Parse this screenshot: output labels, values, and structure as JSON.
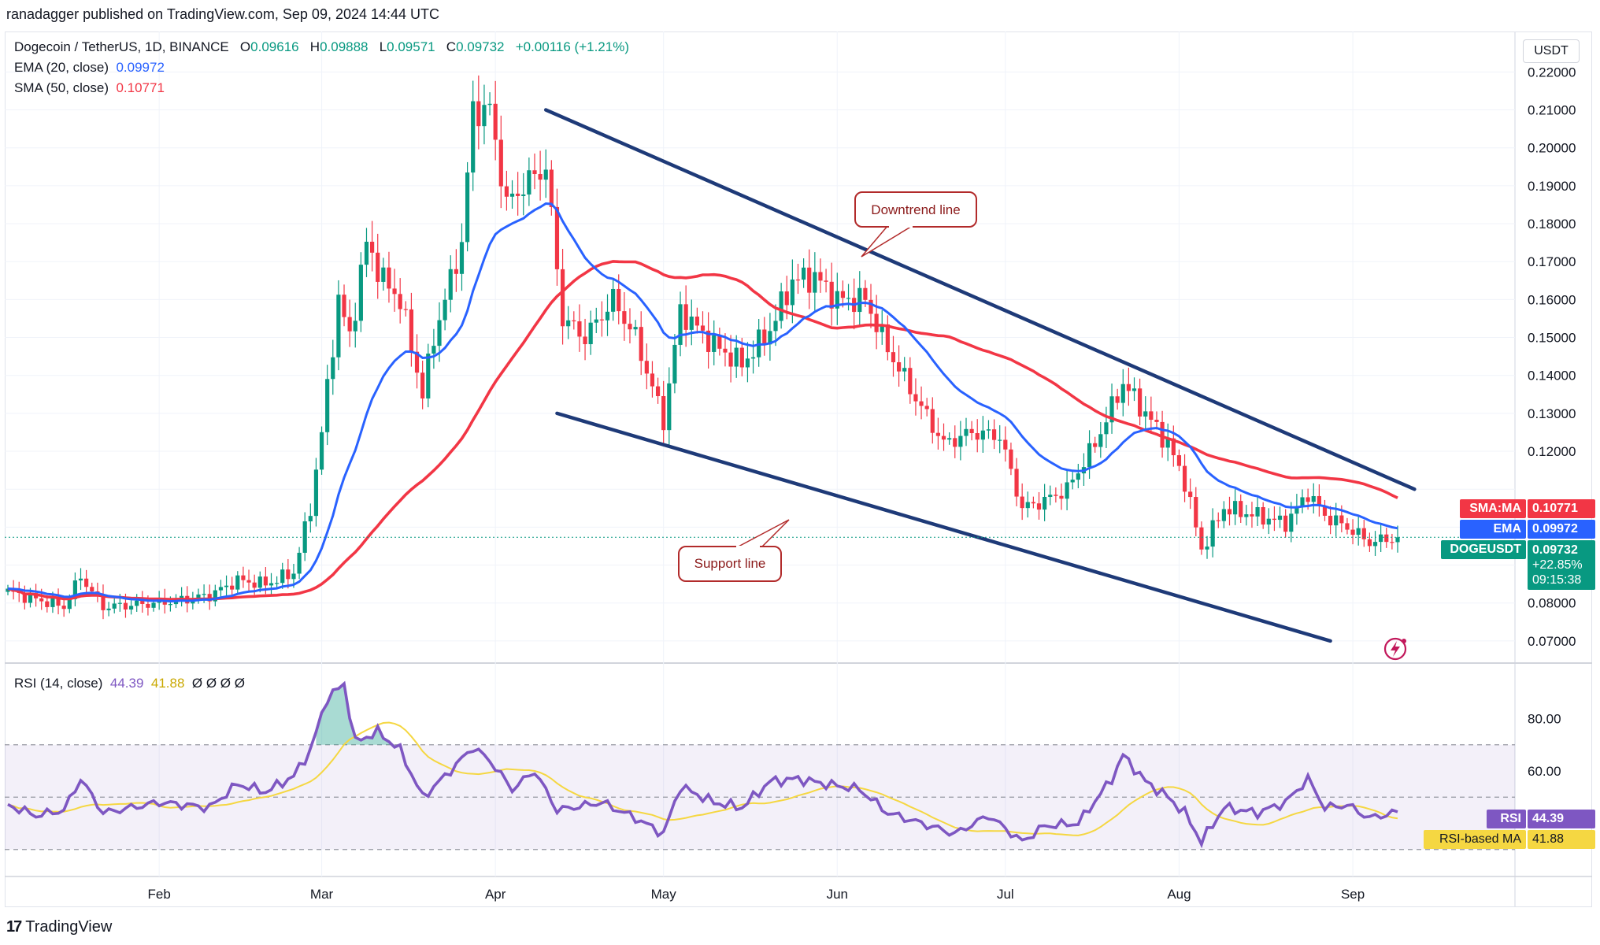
{
  "header": {
    "title": "ranadagger published on TradingView.com, Sep 09, 2024 14:44 UTC"
  },
  "legend": {
    "symbol": "Dogecoin / TetherUS, 1D, BINANCE",
    "o_label": "O",
    "o_value": "0.09616",
    "h_label": "H",
    "h_value": "0.09888",
    "l_label": "L",
    "l_value": "0.09571",
    "c_label": "C",
    "c_value": "0.09732",
    "change": "+0.00116 (+1.21%)",
    "ema_label": "EMA (20, close)",
    "ema_value": "0.09972",
    "sma_label": "SMA (50, close)",
    "sma_value": "0.10771",
    "rsi_label": "RSI (14, close)",
    "rsi_value": "44.39",
    "rsi_ma_value": "41.88",
    "rsi_extra": "Ø Ø Ø Ø"
  },
  "currency_button": "USDT",
  "tags": {
    "sma_name": "SMA:MA",
    "sma_value": "0.10771",
    "ema_name": "EMA",
    "ema_value": "0.09972",
    "sym_name": "DOGEUSDT",
    "price": "0.09732",
    "pct": "+22.85%",
    "countdown": "09:15:38",
    "rsi_name": "RSI",
    "rsi_value": "44.39",
    "rsima_name": "RSI-based MA",
    "rsima_value": "41.88"
  },
  "annotations": {
    "downtrend": "Downtrend line",
    "support": "Support line"
  },
  "footer": {
    "brand": "TradingView"
  },
  "colors": {
    "up": "#089981",
    "down": "#f23645",
    "ema": "#2962ff",
    "sma": "#f23645",
    "trendline": "#1e3a78",
    "rsi": "#7e57c2",
    "rsi_ma": "#f5d742",
    "price_tag": "#089981"
  },
  "chart_data": [
    {
      "type": "candlestick",
      "title": "Dogecoin / TetherUS, 1D, BINANCE",
      "y_tick_labels": [
        "0.22000",
        "0.21000",
        "0.20000",
        "0.19000",
        "0.18000",
        "0.17000",
        "0.16000",
        "0.15000",
        "0.14000",
        "0.13000",
        "0.12000",
        "0.08000",
        "0.07000"
      ],
      "x_tick_labels": [
        "Feb",
        "Mar",
        "Apr",
        "May",
        "Jun",
        "Jul",
        "Aug",
        "Sep"
      ],
      "ylim": [
        0.065,
        0.229
      ],
      "x_start": "2024-01-05",
      "close_anchors": [
        [
          "2024-01-05",
          0.083
        ],
        [
          "2024-01-10",
          0.081
        ],
        [
          "2024-01-15",
          0.079
        ],
        [
          "2024-01-18",
          0.087
        ],
        [
          "2024-01-22",
          0.079
        ],
        [
          "2024-02-01",
          0.08
        ],
        [
          "2024-02-10",
          0.082
        ],
        [
          "2024-02-15",
          0.086
        ],
        [
          "2024-02-20",
          0.085
        ],
        [
          "2024-02-25",
          0.088
        ],
        [
          "2024-02-28",
          0.105
        ],
        [
          "2024-03-01",
          0.125
        ],
        [
          "2024-03-04",
          0.16
        ],
        [
          "2024-03-06",
          0.15
        ],
        [
          "2024-03-09",
          0.175
        ],
        [
          "2024-03-12",
          0.165
        ],
        [
          "2024-03-15",
          0.16
        ],
        [
          "2024-03-19",
          0.135
        ],
        [
          "2024-03-21",
          0.15
        ],
        [
          "2024-03-26",
          0.175
        ],
        [
          "2024-03-28",
          0.21
        ],
        [
          "2024-03-31",
          0.21
        ],
        [
          "2024-04-03",
          0.185
        ],
        [
          "2024-04-06",
          0.19
        ],
        [
          "2024-04-10",
          0.195
        ],
        [
          "2024-04-13",
          0.155
        ],
        [
          "2024-04-17",
          0.15
        ],
        [
          "2024-04-22",
          0.16
        ],
        [
          "2024-04-26",
          0.15
        ],
        [
          "2024-05-01",
          0.128
        ],
        [
          "2024-05-04",
          0.157
        ],
        [
          "2024-05-10",
          0.148
        ],
        [
          "2024-05-15",
          0.143
        ],
        [
          "2024-05-20",
          0.152
        ],
        [
          "2024-05-24",
          0.165
        ],
        [
          "2024-05-28",
          0.166
        ],
        [
          "2024-06-01",
          0.16
        ],
        [
          "2024-06-06",
          0.16
        ],
        [
          "2024-06-10",
          0.147
        ],
        [
          "2024-06-15",
          0.134
        ],
        [
          "2024-06-20",
          0.122
        ],
        [
          "2024-06-25",
          0.125
        ],
        [
          "2024-06-30",
          0.124
        ],
        [
          "2024-07-04",
          0.105
        ],
        [
          "2024-07-08",
          0.107
        ],
        [
          "2024-07-12",
          0.11
        ],
        [
          "2024-07-17",
          0.122
        ],
        [
          "2024-07-22",
          0.138
        ],
        [
          "2024-07-26",
          0.13
        ],
        [
          "2024-07-30",
          0.122
        ],
        [
          "2024-08-02",
          0.112
        ],
        [
          "2024-08-05",
          0.094
        ],
        [
          "2024-08-09",
          0.105
        ],
        [
          "2024-08-15",
          0.103
        ],
        [
          "2024-08-20",
          0.101
        ],
        [
          "2024-08-24",
          0.109
        ],
        [
          "2024-08-27",
          0.103
        ],
        [
          "2024-08-31",
          0.1
        ],
        [
          "2024-09-04",
          0.096
        ],
        [
          "2024-09-09",
          0.09732
        ]
      ],
      "series": [
        {
          "name": "EMA (20, close)",
          "last": 0.09972
        },
        {
          "name": "SMA (50, close)",
          "last": 0.10771
        }
      ],
      "trendlines": [
        {
          "label": "Downtrend line",
          "from": [
            "2024-04-10",
            0.21
          ],
          "to": [
            "2024-09-12",
            0.11
          ]
        },
        {
          "label": "Support line",
          "from": [
            "2024-04-12",
            0.13
          ],
          "to": [
            "2024-08-28",
            0.07
          ]
        }
      ],
      "last_price": 0.09732
    },
    {
      "type": "line",
      "title": "RSI (14, close)",
      "y_tick_labels": [
        "80.00",
        "60.00"
      ],
      "ylim": [
        20,
        100
      ],
      "bands": [
        30,
        50,
        70
      ],
      "x_start": "2024-01-05",
      "rsi_anchors": [
        [
          "2024-01-05",
          47
        ],
        [
          "2024-01-10",
          43
        ],
        [
          "2024-01-15",
          45
        ],
        [
          "2024-01-18",
          57
        ],
        [
          "2024-01-22",
          44
        ],
        [
          "2024-02-01",
          48
        ],
        [
          "2024-02-10",
          46
        ],
        [
          "2024-02-15",
          55
        ],
        [
          "2024-02-20",
          52
        ],
        [
          "2024-02-25",
          58
        ],
        [
          "2024-02-28",
          68
        ],
        [
          "2024-03-02",
          88
        ],
        [
          "2024-03-05",
          93
        ],
        [
          "2024-03-07",
          71
        ],
        [
          "2024-03-11",
          75
        ],
        [
          "2024-03-15",
          68
        ],
        [
          "2024-03-19",
          50
        ],
        [
          "2024-03-23",
          58
        ],
        [
          "2024-03-28",
          69
        ],
        [
          "2024-03-31",
          64
        ],
        [
          "2024-04-04",
          53
        ],
        [
          "2024-04-08",
          60
        ],
        [
          "2024-04-12",
          45
        ],
        [
          "2024-04-20",
          48
        ],
        [
          "2024-04-26",
          42
        ],
        [
          "2024-05-01",
          36
        ],
        [
          "2024-05-04",
          54
        ],
        [
          "2024-05-10",
          48
        ],
        [
          "2024-05-15",
          46
        ],
        [
          "2024-05-20",
          56
        ],
        [
          "2024-05-25",
          57
        ],
        [
          "2024-05-30",
          55
        ],
        [
          "2024-06-05",
          53
        ],
        [
          "2024-06-10",
          44
        ],
        [
          "2024-06-16",
          40
        ],
        [
          "2024-06-22",
          36
        ],
        [
          "2024-06-28",
          43
        ],
        [
          "2024-07-04",
          33
        ],
        [
          "2024-07-08",
          39
        ],
        [
          "2024-07-14",
          40
        ],
        [
          "2024-07-20",
          57
        ],
        [
          "2024-07-22",
          66
        ],
        [
          "2024-07-26",
          56
        ],
        [
          "2024-07-30",
          50
        ],
        [
          "2024-08-02",
          44
        ],
        [
          "2024-08-05",
          33
        ],
        [
          "2024-08-09",
          46
        ],
        [
          "2024-08-15",
          44
        ],
        [
          "2024-08-20",
          48
        ],
        [
          "2024-08-24",
          57
        ],
        [
          "2024-08-27",
          46
        ],
        [
          "2024-08-31",
          47
        ],
        [
          "2024-09-04",
          42
        ],
        [
          "2024-09-09",
          44.39
        ]
      ],
      "series": [
        {
          "name": "RSI",
          "last": 44.39
        },
        {
          "name": "RSI-based MA",
          "last": 41.88
        }
      ]
    }
  ]
}
